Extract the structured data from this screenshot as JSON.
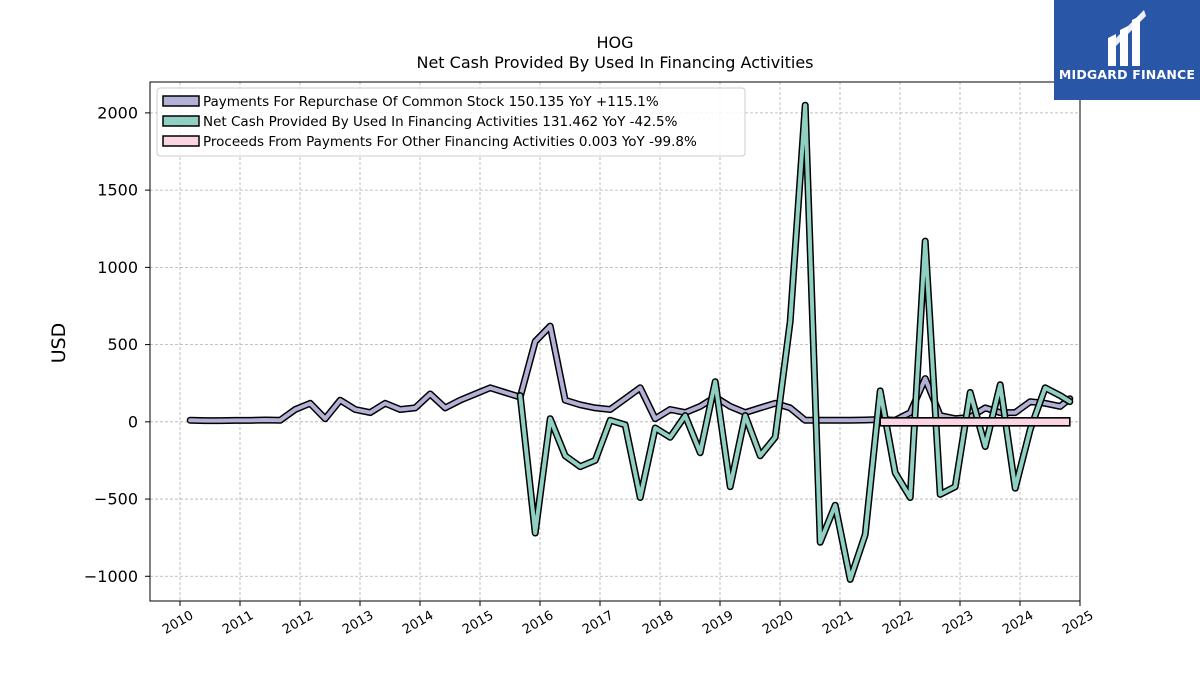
{
  "chart_data": {
    "type": "line",
    "title": "HOG",
    "subtitle": "Net Cash Provided By Used In Financing Activities",
    "ylabel": "USD",
    "xlabel": "",
    "xlim": [
      2009.5,
      2025.0
    ],
    "ylim": [
      -1160,
      2200
    ],
    "yticks": [
      -1000,
      -500,
      0,
      500,
      1000,
      1500,
      2000
    ],
    "ytick_labels": [
      "−1000",
      "−500",
      "0",
      "500",
      "1000",
      "1500",
      "2000"
    ],
    "xticks": [
      "2010",
      "2011",
      "2012",
      "2013",
      "2014",
      "2015",
      "2016",
      "2017",
      "2018",
      "2019",
      "2020",
      "2021",
      "2022",
      "2023",
      "2024",
      "2025"
    ],
    "grid": true,
    "legend_position": "top-left",
    "series": [
      {
        "name": "Payments For Repurchase Of Common Stock",
        "legend_label": "Payments For Repurchase Of Common Stock  150.135 YoY +115.1%",
        "color": "#b3b1d6",
        "x": [
          2010.17,
          2010.42,
          2010.67,
          2010.92,
          2011.17,
          2011.42,
          2011.67,
          2011.92,
          2012.17,
          2012.42,
          2012.67,
          2012.92,
          2013.17,
          2013.42,
          2013.67,
          2013.92,
          2014.17,
          2014.42,
          2014.67,
          2014.92,
          2015.17,
          2015.42,
          2015.67,
          2015.92,
          2016.17,
          2016.42,
          2016.67,
          2016.92,
          2017.17,
          2017.42,
          2017.67,
          2017.92,
          2018.17,
          2018.42,
          2018.67,
          2018.92,
          2019.17,
          2019.42,
          2019.67,
          2019.92,
          2020.17,
          2020.42,
          2020.67,
          2020.92,
          2021.17,
          2021.42,
          2021.67,
          2021.92,
          2022.17,
          2022.42,
          2022.67,
          2022.92,
          2023.17,
          2023.42,
          2023.67,
          2023.92,
          2024.17,
          2024.42,
          2024.67,
          2024.83
        ],
        "y": [
          10,
          8,
          8,
          9,
          9,
          12,
          10,
          80,
          120,
          20,
          140,
          80,
          60,
          120,
          80,
          90,
          180,
          90,
          140,
          180,
          220,
          190,
          160,
          520,
          620,
          140,
          110,
          90,
          80,
          150,
          220,
          20,
          80,
          60,
          100,
          160,
          100,
          60,
          90,
          120,
          90,
          10,
          10,
          10,
          10,
          12,
          15,
          10,
          60,
          280,
          40,
          20,
          30,
          90,
          60,
          60,
          130,
          120,
          100,
          150
        ]
      },
      {
        "name": "Net Cash Provided By Used In Financing Activities",
        "legend_label": "Net Cash Provided By Used In Financing Activities  131.462 YoY -42.5%",
        "color": "#8fd0c3",
        "x": [
          2015.67,
          2015.92,
          2016.17,
          2016.42,
          2016.67,
          2016.92,
          2017.17,
          2017.42,
          2017.67,
          2017.92,
          2018.17,
          2018.42,
          2018.67,
          2018.92,
          2019.17,
          2019.42,
          2019.67,
          2019.92,
          2020.17,
          2020.42,
          2020.67,
          2020.92,
          2021.17,
          2021.42,
          2021.67,
          2021.92,
          2022.17,
          2022.42,
          2022.67,
          2022.92,
          2023.17,
          2023.42,
          2023.67,
          2023.92,
          2024.17,
          2024.42,
          2024.67,
          2024.83
        ],
        "y": [
          170,
          -720,
          20,
          -220,
          -290,
          -250,
          10,
          -20,
          -490,
          -40,
          -100,
          40,
          -200,
          260,
          -420,
          40,
          -220,
          -100,
          650,
          2050,
          -780,
          -540,
          -1020,
          -730,
          200,
          -330,
          -490,
          1170,
          -470,
          -420,
          190,
          -160,
          240,
          -430,
          -50,
          220,
          170,
          131
        ]
      },
      {
        "name": "Proceeds From Payments For Other Financing Activities",
        "legend_label": "Proceeds From Payments For Other Financing Activities  0.003 YoY -99.8%",
        "color": "#fbd5e3",
        "x": [
          2021.67,
          2024.83
        ],
        "y": [
          0,
          0
        ]
      }
    ]
  },
  "logo": {
    "text": "MIDGARD FINANCE",
    "color": "#2a56a8"
  }
}
